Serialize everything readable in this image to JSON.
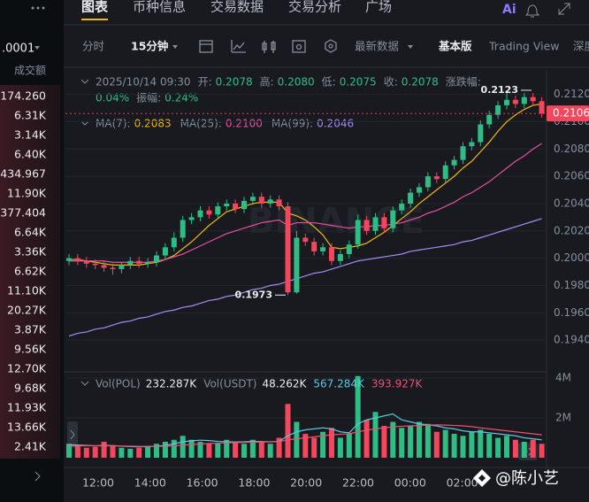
{
  "sidebar": {
    "precision": ".0001",
    "header": "成交额",
    "rows": [
      "174.260",
      "6.31K",
      "3.14K",
      "6.40K",
      "434.967",
      "11.90K",
      "377.404",
      "6.64K",
      "3.36K",
      "6.62K",
      "11.10K",
      "20.27K",
      "3.87K",
      "9.56K",
      "12.70K",
      "9.68K",
      "11.93K",
      "13.66K",
      "2.41K"
    ]
  },
  "tabs": [
    "图表",
    "币种信息",
    "交易数据",
    "交易分析",
    "广场"
  ],
  "ai_label": "Ai",
  "toolbar": [
    "分时",
    "15分钟",
    "最新数据",
    "基本版",
    "Trading View",
    "深度"
  ],
  "info": {
    "date": "2025/10/14 09:30",
    "ohlc": [
      {
        "label": "开:",
        "value": "0.2078"
      },
      {
        "label": "高:",
        "value": "0.2080"
      },
      {
        "label": "低:",
        "value": "0.2075"
      },
      {
        "label": "收:",
        "value": "0.2078"
      }
    ],
    "change_label": "涨跌幅:",
    "change": "0.04%",
    "amplitude_label": "振幅:",
    "amplitude": "0.24%"
  },
  "ma_legend": [
    {
      "label": "MA(7):",
      "value": "0.2083",
      "color": "#f0b90b"
    },
    {
      "label": "MA(25):",
      "value": "0.2100",
      "color": "#e84fa3"
    },
    {
      "label": "MA(99):",
      "value": "0.2046",
      "color": "#a78bfa"
    }
  ],
  "chart": {
    "type": "candlestick",
    "up_color": "#2ebd85",
    "down_color": "#f6465d",
    "watermark": "BINANCE",
    "ylim": [
      0.192,
      0.2134
    ],
    "yticks": [
      {
        "value": 0.212,
        "label": "0.2120"
      },
      {
        "value": 0.21,
        "label": "0.2100"
      },
      {
        "value": 0.208,
        "label": "0.2080"
      },
      {
        "value": 0.206,
        "label": "0.2060"
      },
      {
        "value": 0.204,
        "label": "0.2040"
      },
      {
        "value": 0.202,
        "label": "0.2020"
      },
      {
        "value": 0.2,
        "label": "0.2000"
      },
      {
        "value": 0.198,
        "label": "0.1980"
      },
      {
        "value": 0.196,
        "label": "0.1960"
      },
      {
        "value": 0.194,
        "label": "0.1940"
      }
    ],
    "open": [
      0.1998,
      0.2,
      0.1998,
      0.1996,
      0.1995,
      0.1993,
      0.1992,
      0.1995,
      0.1998,
      0.1996,
      0.1997,
      0.2002,
      0.2008,
      0.2015,
      0.2028,
      0.203,
      0.2035,
      0.2032,
      0.2038,
      0.204,
      0.2036,
      0.2042,
      0.2045,
      0.204,
      0.2043,
      0.2038,
      0.1975,
      0.2015,
      0.2012,
      0.2005,
      0.2008,
      0.1998,
      0.2003,
      0.201,
      0.2028,
      0.202,
      0.203,
      0.2022,
      0.2035,
      0.204,
      0.2048,
      0.2052,
      0.206,
      0.2058,
      0.2068,
      0.2072,
      0.2082,
      0.2085,
      0.2098,
      0.2105,
      0.2112,
      0.2116,
      0.2113,
      0.2118,
      0.2115
    ],
    "high": [
      0.2003,
      0.2003,
      0.2001,
      0.1999,
      0.1998,
      0.1996,
      0.1997,
      0.2001,
      0.2001,
      0.2,
      0.2005,
      0.2011,
      0.2019,
      0.2031,
      0.2033,
      0.2038,
      0.2038,
      0.2041,
      0.2043,
      0.2043,
      0.2045,
      0.2048,
      0.2048,
      0.2046,
      0.2046,
      0.2041,
      0.202,
      0.2018,
      0.2015,
      0.2011,
      0.2011,
      0.2006,
      0.2013,
      0.2032,
      0.2031,
      0.2033,
      0.2033,
      0.2038,
      0.2043,
      0.2051,
      0.2055,
      0.2063,
      0.2063,
      0.2071,
      0.2075,
      0.2085,
      0.2088,
      0.2101,
      0.2108,
      0.2115,
      0.2123,
      0.2119,
      0.2121,
      0.2121,
      0.2118
    ],
    "low": [
      0.1995,
      0.1995,
      0.1993,
      0.1992,
      0.199,
      0.1988,
      0.1989,
      0.1992,
      0.1993,
      0.1993,
      0.1994,
      0.1999,
      0.2005,
      0.2012,
      0.2025,
      0.2027,
      0.2029,
      0.2029,
      0.2035,
      0.2033,
      0.2033,
      0.2039,
      0.2037,
      0.2037,
      0.2035,
      0.1973,
      0.1974,
      0.2009,
      0.2002,
      0.2002,
      0.1995,
      0.1995,
      0.2,
      0.2007,
      0.2017,
      0.2017,
      0.2019,
      0.2019,
      0.2032,
      0.2037,
      0.2045,
      0.2049,
      0.2055,
      0.2055,
      0.2065,
      0.2069,
      0.2079,
      0.2082,
      0.2095,
      0.2102,
      0.2109,
      0.211,
      0.211,
      0.2112,
      0.2103
    ],
    "close": [
      0.2,
      0.1998,
      0.1996,
      0.1995,
      0.1993,
      0.1992,
      0.1995,
      0.1998,
      0.1996,
      0.1997,
      0.2002,
      0.2008,
      0.2015,
      0.2028,
      0.203,
      0.2035,
      0.2032,
      0.2038,
      0.204,
      0.2036,
      0.2042,
      0.2045,
      0.204,
      0.2043,
      0.2038,
      0.1975,
      0.2015,
      0.2012,
      0.2005,
      0.2008,
      0.1998,
      0.2003,
      0.201,
      0.2028,
      0.202,
      0.203,
      0.2022,
      0.2035,
      0.204,
      0.2048,
      0.2052,
      0.206,
      0.2058,
      0.2068,
      0.2072,
      0.2082,
      0.2085,
      0.2098,
      0.2105,
      0.2112,
      0.2116,
      0.2113,
      0.2118,
      0.2115,
      0.2106
    ],
    "ma": [
      {
        "color": "#f0b90b",
        "values": [
          0.1999,
          0.1999,
          0.1998,
          0.1997,
          0.1996,
          0.1995,
          0.1995,
          0.1995,
          0.1995,
          0.1996,
          0.1997,
          0.1999,
          0.2002,
          0.2007,
          0.2012,
          0.2018,
          0.2024,
          0.2029,
          0.2034,
          0.2036,
          0.2038,
          0.204,
          0.2041,
          0.2041,
          0.2041,
          0.2033,
          0.2031,
          0.2028,
          0.2023,
          0.2017,
          0.2008,
          0.2007,
          0.2008,
          0.2009,
          0.2011,
          0.2015,
          0.2019,
          0.2024,
          0.2029,
          0.2034,
          0.204,
          0.2045,
          0.205,
          0.2055,
          0.206,
          0.2066,
          0.2071,
          0.2078,
          0.2085,
          0.2093,
          0.21,
          0.2105,
          0.2109,
          0.2112,
          0.2113
        ]
      },
      {
        "color": "#e84fa3",
        "values": [
          0.1998,
          0.1998,
          0.1998,
          0.1998,
          0.1998,
          0.1997,
          0.1997,
          0.1997,
          0.1997,
          0.1997,
          0.1998,
          0.1999,
          0.2001,
          0.2003,
          0.2006,
          0.2009,
          0.2012,
          0.2015,
          0.2018,
          0.202,
          0.2022,
          0.2024,
          0.2026,
          0.2027,
          0.2028,
          0.2024,
          0.2026,
          0.2026,
          0.2026,
          0.2025,
          0.2024,
          0.2023,
          0.2022,
          0.2023,
          0.2023,
          0.2024,
          0.2024,
          0.2025,
          0.2026,
          0.2028,
          0.203,
          0.2033,
          0.2035,
          0.2038,
          0.2041,
          0.2045,
          0.2048,
          0.2052,
          0.2056,
          0.2061,
          0.2066,
          0.2071,
          0.2075,
          0.208,
          0.2084
        ]
      },
      {
        "color": "#a78bfa",
        "values": [
          0.1943,
          0.1945,
          0.1946,
          0.1948,
          0.1949,
          0.1951,
          0.1953,
          0.1954,
          0.1956,
          0.1957,
          0.1959,
          0.1961,
          0.1962,
          0.1964,
          0.1965,
          0.1967,
          0.1969,
          0.197,
          0.1972,
          0.1973,
          0.1975,
          0.1977,
          0.1978,
          0.198,
          0.1981,
          0.1983,
          0.1985,
          0.1987,
          0.1989,
          0.199,
          0.1992,
          0.1994,
          0.1996,
          0.1998,
          0.1999,
          0.2,
          0.2001,
          0.2002,
          0.2003,
          0.2005,
          0.2006,
          0.2007,
          0.2008,
          0.2009,
          0.201,
          0.2012,
          0.2013,
          0.2015,
          0.2017,
          0.2019,
          0.2021,
          0.2023,
          0.2025,
          0.2027,
          0.2029
        ]
      }
    ],
    "annotations": [
      {
        "label": "0.2123",
        "value": 0.2123
      },
      {
        "label": "0.1973",
        "value": 0.1973
      }
    ],
    "last_price": {
      "label": "0.2106",
      "value": 0.2106
    },
    "volume": {
      "legend": [
        {
          "label": "Vol(POL)",
          "value": "232.287K"
        },
        {
          "label": "Vol(USDT)",
          "value": "48.262K"
        },
        {
          "value": "567.284K",
          "color": "#5ac8e0"
        },
        {
          "value": "393.927K",
          "color": "#f0506e"
        }
      ],
      "ylim": [
        0,
        4200000
      ],
      "yticks": [
        {
          "value": 2000000,
          "label": "2M"
        },
        {
          "value": 4000000,
          "label": "4M"
        }
      ],
      "values": [
        700000,
        600000,
        500000,
        550000,
        800000,
        600000,
        500000,
        450000,
        500000,
        600000,
        700000,
        800000,
        900000,
        1100000,
        900000,
        800000,
        700000,
        750000,
        900000,
        800000,
        700000,
        900000,
        800000,
        700000,
        1000000,
        2700000,
        1800000,
        1200000,
        1000000,
        1300000,
        1500000,
        1000000,
        1200000,
        4100000,
        1900000,
        2300000,
        1600000,
        1800000,
        1500000,
        1600000,
        1800000,
        1700000,
        1300000,
        1400000,
        1200000,
        1100000,
        1300000,
        1400000,
        1200000,
        1000000,
        1100000,
        900000,
        800000,
        900000,
        700000
      ],
      "ma": [
        {
          "color": "#5ac8e0",
          "values": [
            650000,
            640000,
            620000,
            600000,
            620000,
            610000,
            580000,
            560000,
            550000,
            560000,
            580000,
            620000,
            700000,
            800000,
            850000,
            880000,
            860000,
            820000,
            800000,
            790000,
            800000,
            820000,
            810000,
            800000,
            820000,
            1100000,
            1300000,
            1400000,
            1450000,
            1500000,
            1450000,
            1300000,
            1250000,
            1700000,
            1900000,
            2000000,
            2100000,
            2200000,
            1900000,
            1800000,
            1700000,
            1650000,
            1600000,
            1500000,
            1450000,
            1350000,
            1300000,
            1300000,
            1250000,
            1200000,
            1150000,
            1100000,
            1000000,
            950000,
            900000
          ]
        },
        {
          "color": "#f0506e",
          "values": [
            600000,
            600000,
            600000,
            600000,
            600000,
            600000,
            590000,
            580000,
            570000,
            570000,
            570000,
            580000,
            600000,
            630000,
            660000,
            690000,
            710000,
            730000,
            750000,
            760000,
            770000,
            780000,
            790000,
            800000,
            810000,
            900000,
            950000,
            1000000,
            1050000,
            1100000,
            1150000,
            1180000,
            1200000,
            1300000,
            1380000,
            1450000,
            1500000,
            1550000,
            1580000,
            1600000,
            1620000,
            1640000,
            1650000,
            1640000,
            1620000,
            1600000,
            1560000,
            1500000,
            1450000,
            1400000,
            1350000,
            1300000,
            1250000,
            1200000,
            1150000
          ]
        }
      ]
    },
    "x_labels": [
      "12:00",
      "14:00",
      "16:00",
      "18:00",
      "20:00",
      "22:00",
      "00:00",
      "02:00"
    ]
  },
  "credit": "@陈小艺"
}
